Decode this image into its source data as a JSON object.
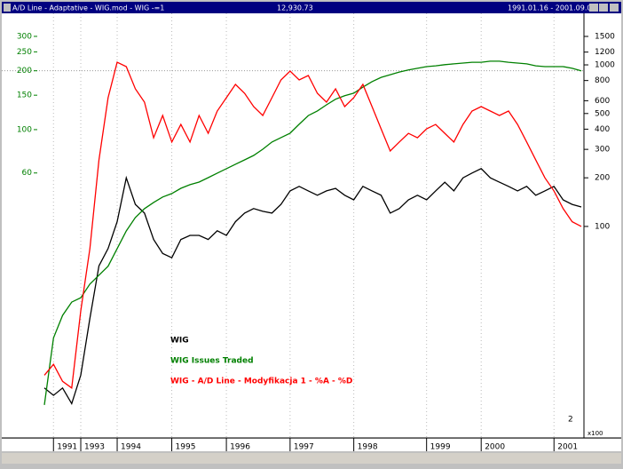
{
  "window": {
    "title": "A/D Line - Adaptative - WIG.mod - WIG -=1",
    "value": "12,930.73",
    "range": "1991.01.16 - 2001.09.05"
  },
  "chart_data": {
    "type": "line",
    "categories": [
      null,
      "1991",
      null,
      null,
      "1993",
      null,
      null,
      null,
      "1994",
      null,
      null,
      null,
      null,
      null,
      "1995",
      null,
      null,
      null,
      null,
      null,
      "1996",
      null,
      null,
      null,
      null,
      null,
      null,
      "1997",
      null,
      null,
      null,
      null,
      null,
      null,
      "1998",
      null,
      null,
      null,
      null,
      null,
      null,
      null,
      "1999",
      null,
      null,
      null,
      null,
      null,
      "2000",
      null,
      null,
      null,
      null,
      null,
      null,
      null,
      "2001",
      null,
      null,
      null
    ],
    "series": [
      {
        "name": "WIG",
        "color": "#000000",
        "axis": "y2",
        "values": [
          10,
          9,
          10,
          8,
          12,
          27,
          57,
          73,
          107,
          200,
          137,
          121,
          83,
          68,
          64,
          83,
          88,
          88,
          83,
          94,
          88,
          107,
          121,
          129,
          124,
          121,
          137,
          166,
          177,
          166,
          156,
          166,
          172,
          156,
          146,
          177,
          166,
          156,
          121,
          129,
          146,
          156,
          146,
          166,
          188,
          166,
          200,
          214,
          228,
          200,
          188,
          177,
          166,
          177,
          156,
          166,
          177,
          146,
          137,
          132
        ]
      },
      {
        "name": "WIG Issues Traded",
        "color": "#008000",
        "axis": "y",
        "values": [
          3.9,
          8.6,
          11.2,
          13.1,
          13.8,
          16.2,
          18,
          20,
          24.6,
          30.3,
          35.5,
          39.4,
          42.4,
          45.2,
          47.1,
          50.1,
          52.3,
          53.9,
          56.8,
          59.9,
          63.1,
          66.5,
          70,
          73.8,
          79.4,
          86.4,
          91,
          95.9,
          106.5,
          118,
          124.6,
          134,
          143,
          149,
          153.6,
          165,
          176,
          185,
          191,
          197,
          202,
          206,
          210,
          212,
          215,
          217,
          219,
          221,
          221,
          224,
          224,
          221,
          219,
          217,
          212,
          210,
          210,
          210,
          206,
          200
        ]
      },
      {
        "name": "WIG - A/D Line - Modyfikacja 1 - %A - %D",
        "color": "#ff0000",
        "axis": "y2",
        "values": [
          12,
          14,
          11,
          10,
          30,
          73,
          258,
          626,
          1038,
          975,
          711,
          588,
          354,
          486,
          333,
          428,
          333,
          486,
          377,
          518,
          626,
          757,
          667,
          552,
          486,
          626,
          807,
          916,
          807,
          859,
          667,
          588,
          711,
          552,
          626,
          757,
          552,
          402,
          293,
          333,
          377,
          354,
          402,
          428,
          377,
          333,
          428,
          518,
          552,
          518,
          486,
          518,
          428,
          333,
          258,
          200,
          166,
          129,
          107,
          100
        ]
      }
    ],
    "ylim": [
      2.73,
      326
    ],
    "yticks": [
      300,
      250,
      200,
      150,
      100,
      60
    ],
    "ylog": true,
    "ytick_color": "#008000",
    "y2lim": [
      5.1,
      1660
    ],
    "y2ticks": [
      1500,
      1200,
      1000,
      800,
      600,
      500,
      400,
      300,
      200,
      100
    ],
    "y2log": true,
    "grid_y": [
      200
    ],
    "panel_number": "2",
    "scale_note": "x100"
  }
}
